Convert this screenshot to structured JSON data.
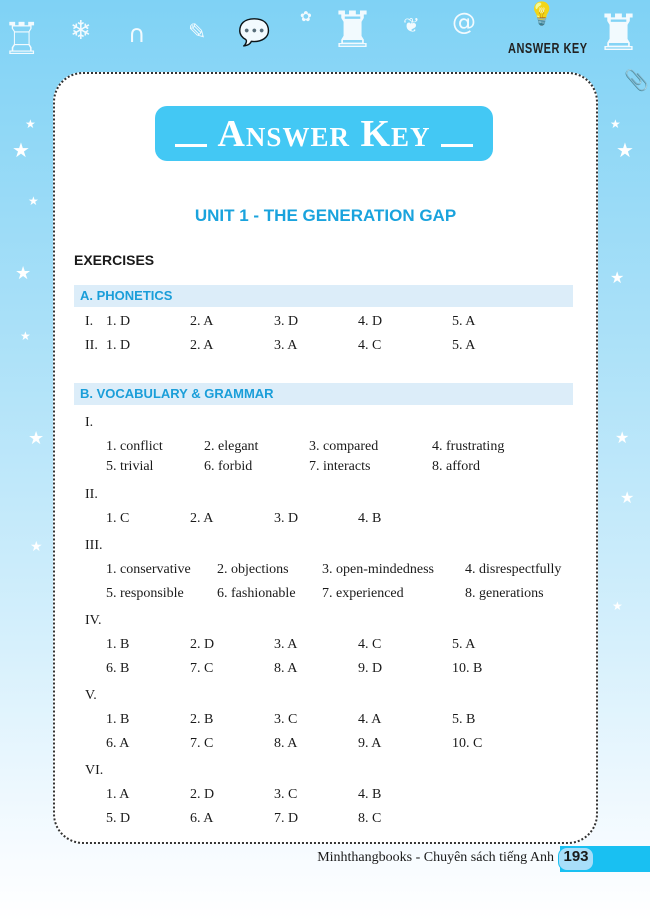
{
  "header": {
    "running_title": "ANSWER KEY"
  },
  "title": "Answer Key",
  "unit": "UNIT 1 - THE GENERATION GAP",
  "exercises_heading": "EXERCISES",
  "sections": {
    "phonetics": {
      "label": "A. PHONETICS",
      "rows": [
        {
          "roman": "I.",
          "items": [
            "1. D",
            "2. A",
            "3. D",
            "4. D",
            "5. A"
          ]
        },
        {
          "roman": "II.",
          "items": [
            "1. D",
            "2. A",
            "3. A",
            "4. C",
            "5. A"
          ]
        }
      ]
    },
    "vocab": {
      "label": "B. VOCABULARY & GRAMMAR",
      "groups": [
        {
          "roman": "I.",
          "rows": [
            [
              "1. conflict",
              "2. elegant",
              "3. compared",
              "4. frustrating"
            ],
            [
              "5. trivial",
              "6. forbid",
              "7. interacts",
              "8. afford"
            ]
          ]
        },
        {
          "roman": "II.",
          "rows": [
            [
              "1. C",
              "2. A",
              "3. D",
              "4. B"
            ]
          ]
        },
        {
          "roman": "III.",
          "rows": [
            [
              "1. conservative",
              "2. objections",
              "3. open-mindedness",
              "4. disrespectfully"
            ],
            [
              "5. responsible",
              "6. fashionable",
              "7. experienced",
              "8. generations"
            ]
          ]
        },
        {
          "roman": "IV.",
          "rows": [
            [
              "1. B",
              "2. D",
              "3. A",
              "4. C",
              "5. A"
            ],
            [
              "6. B",
              "7. C",
              "8. A",
              "9. D",
              "10. B"
            ]
          ]
        },
        {
          "roman": "V.",
          "rows": [
            [
              "1. B",
              "2. B",
              "3. C",
              "4. A",
              "5. B"
            ],
            [
              "6. A",
              "7. C",
              "8. A",
              "9. A",
              "10. C"
            ]
          ]
        },
        {
          "roman": "VI.",
          "rows": [
            [
              "1. A",
              "2. D",
              "3. C",
              "4. B"
            ],
            [
              "5. D",
              "6. A",
              "7. D",
              "8. C"
            ]
          ]
        }
      ]
    }
  },
  "footer": {
    "publisher": "Minhthangbooks - Chuyên sách tiếng Anh",
    "page": "193"
  },
  "colors": {
    "accent": "#43c8f4",
    "heading": "#1aa3dd",
    "section_bg": "#dcedf9",
    "page_tab": "#19c0f2"
  }
}
